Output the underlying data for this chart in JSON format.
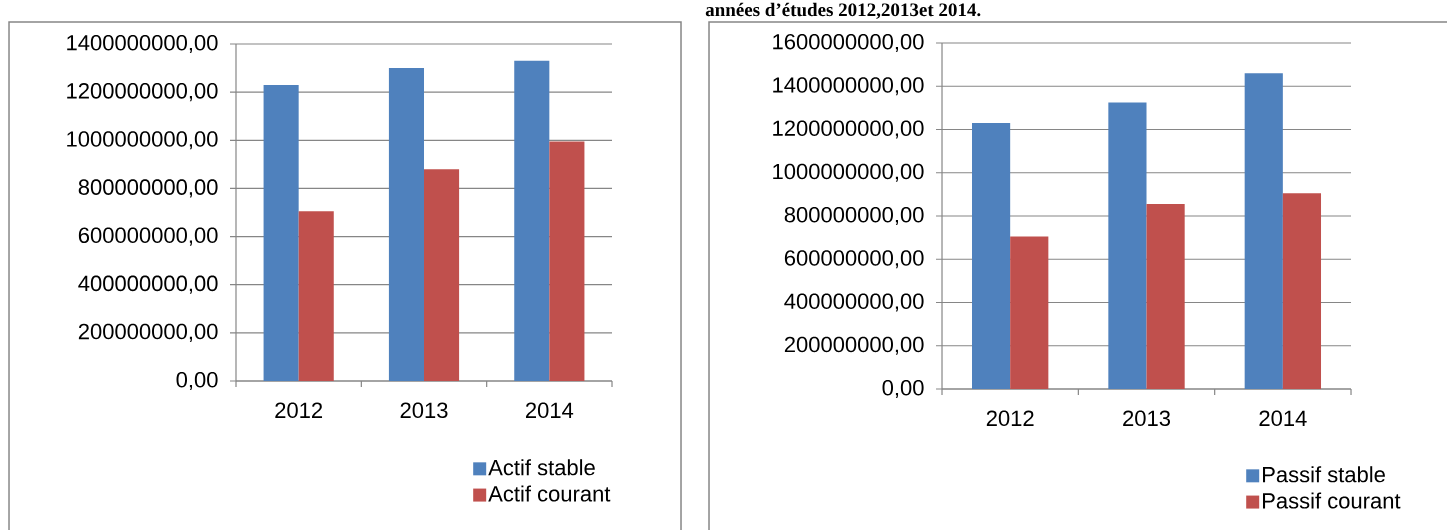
{
  "chart_data": [
    {
      "type": "bar",
      "categories": [
        "2012",
        "2013",
        "2014"
      ],
      "series": [
        {
          "name": "Actif stable",
          "color": "#4f81bd",
          "values": [
            1230000000,
            1300000000,
            1330000000
          ]
        },
        {
          "name": "Actif courant",
          "color": "#c0504d",
          "values": [
            705000000,
            880000000,
            995000000
          ]
        }
      ],
      "ylim": [
        0,
        1400000000
      ],
      "yticks": [
        {
          "value": 0,
          "label": "0,00"
        },
        {
          "value": 200000000,
          "label": "200000000,00"
        },
        {
          "value": 400000000,
          "label": "400000000,00"
        },
        {
          "value": 600000000,
          "label": "600000000,00"
        },
        {
          "value": 800000000,
          "label": "800000000,00"
        },
        {
          "value": 1000000000,
          "label": "1000000000,00"
        },
        {
          "value": 1200000000,
          "label": "1200000000,00"
        },
        {
          "value": 1400000000,
          "label": "1400000000,00"
        }
      ],
      "grid": "y",
      "legend": "bottom right"
    },
    {
      "type": "bar",
      "categories": [
        "2012",
        "2013",
        "2014"
      ],
      "series": [
        {
          "name": "Passif stable",
          "color": "#4f81bd",
          "values": [
            1230000000,
            1325000000,
            1460000000
          ]
        },
        {
          "name": "Passif courant",
          "color": "#c0504d",
          "values": [
            705000000,
            855000000,
            905000000
          ]
        }
      ],
      "ylim": [
        0,
        1600000000
      ],
      "yticks": [
        {
          "value": 0,
          "label": "0,00"
        },
        {
          "value": 200000000,
          "label": "200000000,00"
        },
        {
          "value": 400000000,
          "label": "400000000,00"
        },
        {
          "value": 600000000,
          "label": "600000000,00"
        },
        {
          "value": 800000000,
          "label": "800000000,00"
        },
        {
          "value": 1000000000,
          "label": "1000000000,00"
        },
        {
          "value": 1200000000,
          "label": "1200000000,00"
        },
        {
          "value": 1400000000,
          "label": "1400000000,00"
        },
        {
          "value": 1600000000,
          "label": "1600000000,00"
        }
      ],
      "grid": "y",
      "legend": "bottom right",
      "annotations": [
        "années d’études 2012,2013et 2014."
      ]
    }
  ]
}
